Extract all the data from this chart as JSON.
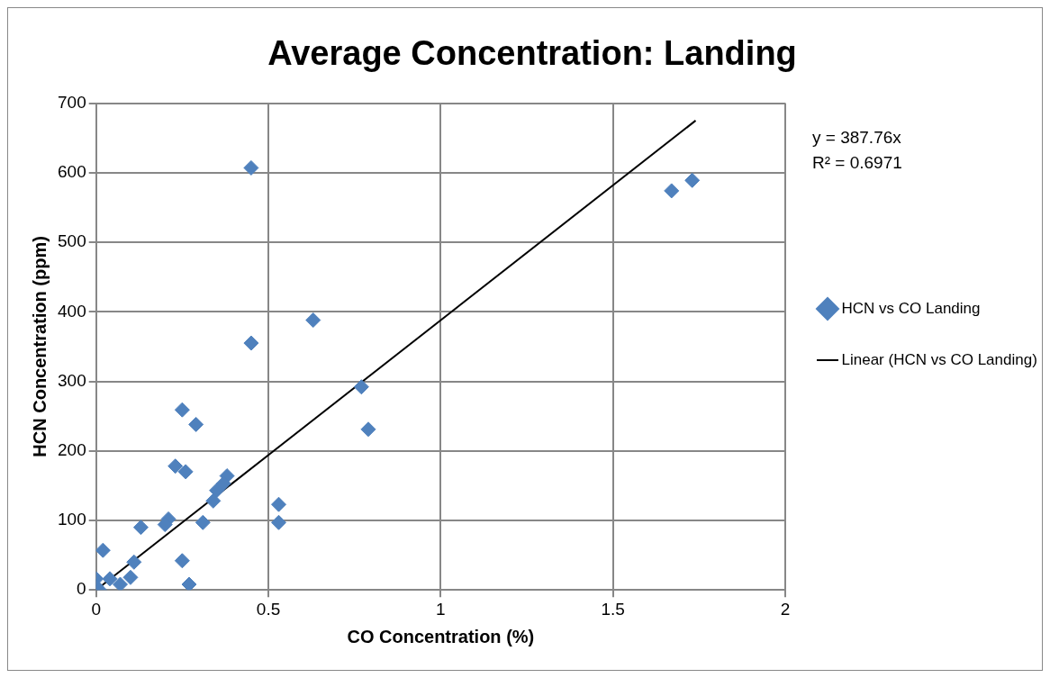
{
  "chart_data": {
    "type": "scatter",
    "title": "Average Concentration: Landing",
    "xlabel": "CO Concentration (%)",
    "ylabel": "HCN Concentration (ppm)",
    "xlim": [
      0,
      2
    ],
    "xticks": [
      0,
      0.5,
      1,
      1.5,
      2
    ],
    "ylim": [
      0,
      700
    ],
    "yticks": [
      0,
      100,
      200,
      300,
      400,
      500,
      600,
      700
    ],
    "grid": true,
    "legend": "right",
    "marker": "diamond",
    "annotations": [
      "y = 387.76x",
      "R² = 0.6971"
    ],
    "series": [
      {
        "name": "HCN vs CO Landing",
        "color": "#4f81bd",
        "x": [
          0.45,
          1.67,
          1.73,
          0.45,
          0.63,
          0.77,
          0.79,
          0.25,
          0.29,
          0.23,
          0.26,
          0.38,
          0.37,
          0.35,
          0.34,
          0.53,
          0.53,
          0.31,
          0.21,
          0.2,
          0.13,
          0.02,
          0.25,
          0.11,
          0.1,
          0.27,
          0.04,
          0.07,
          0.0,
          0.0,
          0.01
        ],
        "values": [
          607,
          574,
          589,
          355,
          388,
          292,
          231,
          259,
          238,
          178,
          170,
          164,
          153,
          143,
          128,
          123,
          97,
          97,
          102,
          94,
          90,
          57,
          42,
          40,
          18,
          8,
          16,
          8,
          16,
          5,
          0
        ]
      },
      {
        "name": "Linear (HCN vs CO Landing)",
        "color": "#000000",
        "type": "line",
        "marker": "none",
        "line_style": "solid",
        "x": [
          0,
          1.74
        ],
        "values": [
          0,
          675
        ]
      }
    ]
  }
}
